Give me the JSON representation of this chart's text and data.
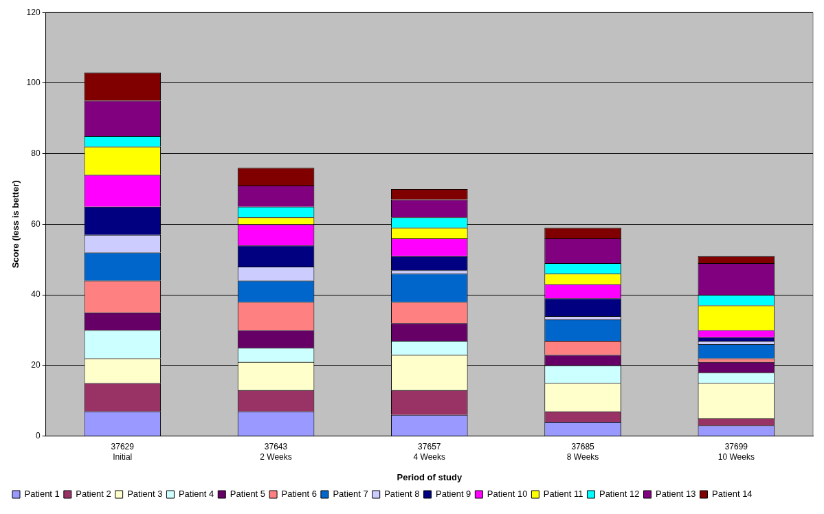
{
  "chart_data": {
    "type": "bar",
    "stacked": true,
    "xlabel": "Period of study",
    "ylabel": "Score (less is better)",
    "categories": [
      "37629\nInitial",
      "37643\n2 Weeks",
      "37657\n4 Weeks",
      "37685\n8 Weeks",
      "37699\n10 Weeks"
    ],
    "ylim": [
      0,
      120
    ],
    "yticks": [
      0,
      20,
      40,
      60,
      80,
      100,
      120
    ],
    "grid": "y",
    "legend": "bottom",
    "series": [
      {
        "name": "Patient 1",
        "color": "#9999ff",
        "values": [
          7,
          7,
          6,
          4,
          3
        ]
      },
      {
        "name": "Patient 2",
        "color": "#993366",
        "values": [
          8,
          6,
          7,
          3,
          2
        ]
      },
      {
        "name": "Patient 3",
        "color": "#ffffcc",
        "values": [
          7,
          8,
          10,
          8,
          10
        ]
      },
      {
        "name": "Patient 4",
        "color": "#ccffff",
        "values": [
          8,
          4,
          4,
          5,
          3
        ]
      },
      {
        "name": "Patient 5",
        "color": "#660066",
        "values": [
          5,
          5,
          5,
          3,
          3
        ]
      },
      {
        "name": "Patient 6",
        "color": "#ff8080",
        "values": [
          9,
          8,
          6,
          4,
          1
        ]
      },
      {
        "name": "Patient 7",
        "color": "#0066cc",
        "values": [
          8,
          6,
          8,
          6,
          4
        ]
      },
      {
        "name": "Patient 8",
        "color": "#ccccff",
        "values": [
          5,
          4,
          1,
          1,
          1
        ]
      },
      {
        "name": "Patient 9",
        "color": "#000080",
        "values": [
          8,
          6,
          4,
          5,
          1
        ]
      },
      {
        "name": "Patient 10",
        "color": "#ff00ff",
        "values": [
          9,
          6,
          5,
          4,
          2
        ]
      },
      {
        "name": "Patient 11",
        "color": "#ffff00",
        "values": [
          8,
          2,
          3,
          3,
          7
        ]
      },
      {
        "name": "Patient 12",
        "color": "#00ffff",
        "values": [
          3,
          3,
          3,
          3,
          3
        ]
      },
      {
        "name": "Patient 13",
        "color": "#800080",
        "values": [
          10,
          6,
          5,
          7,
          9
        ]
      },
      {
        "name": "Patient 14",
        "color": "#800000",
        "values": [
          8,
          5,
          3,
          3,
          2
        ]
      }
    ]
  }
}
